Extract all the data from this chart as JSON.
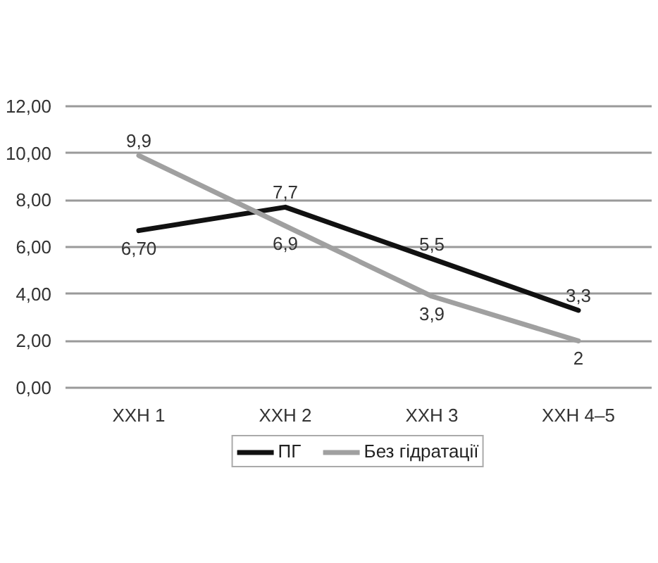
{
  "chart_data": {
    "type": "line",
    "categories": [
      "ХХН 1",
      "ХХН 2",
      "ХХН 3",
      "ХХН 4–5"
    ],
    "series": [
      {
        "name": "ПГ",
        "color": "#111111",
        "values": [
          6.7,
          7.7,
          5.5,
          3.3
        ],
        "value_labels": [
          "6,70",
          "7,7",
          "5,5",
          "3,3"
        ]
      },
      {
        "name": "Без гідратації",
        "color": "#a0a0a0",
        "values": [
          9.9,
          6.9,
          3.9,
          2
        ],
        "value_labels": [
          "9,9",
          "6,9",
          "3,9",
          "2"
        ]
      }
    ],
    "ylim": [
      0,
      12
    ],
    "yticks": [
      {
        "value": 0,
        "label": "0,00"
      },
      {
        "value": 2,
        "label": "2,00"
      },
      {
        "value": 4,
        "label": "4,00"
      },
      {
        "value": 6,
        "label": "6,00"
      },
      {
        "value": 8,
        "label": "8,00"
      },
      {
        "value": 10,
        "label": "10,00"
      },
      {
        "value": 12,
        "label": "12,00"
      }
    ],
    "grid": "y",
    "legend": "bottom"
  }
}
